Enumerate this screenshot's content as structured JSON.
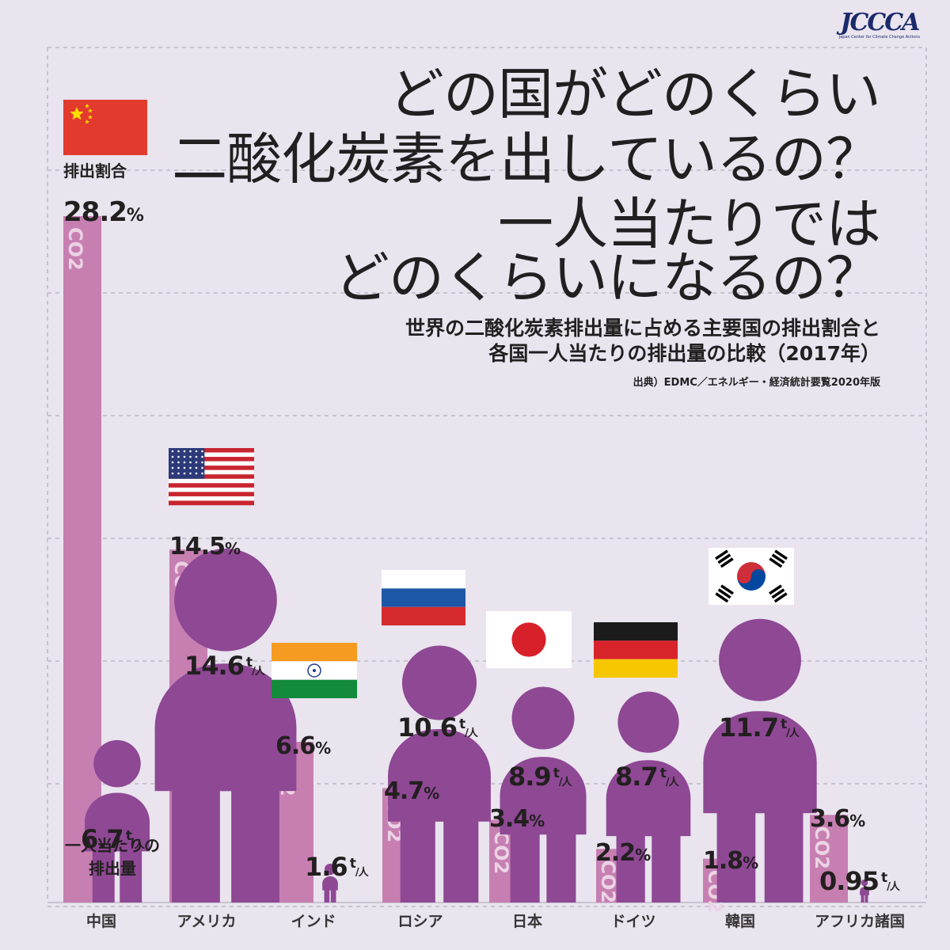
{
  "header": {
    "title_lines": [
      "どの国がどのくらい",
      "二酸化炭素を出しているの？",
      "一人当たりでは",
      "どのくらいになるの？"
    ],
    "subtitle_lines": [
      "世界の二酸化炭素排出量に占める主要国の排出割合と",
      "各国一人当たりの排出量の比較（2017年）"
    ],
    "source": "出典）EDMC／エネルギー・経済統計要覧2020年版",
    "logo": "JCCCA",
    "logo_sub": "Japan Center for Climate Change Actions"
  },
  "chart_data": {
    "type": "bar",
    "title": "世界の二酸化炭素排出量に占める主要国の排出割合と各国一人当たりの排出量の比較（2017年）",
    "categories": [
      "中国",
      "アメリカ",
      "インド",
      "ロシア",
      "日本",
      "ドイツ",
      "韓国",
      "アフリカ諸国"
    ],
    "series": [
      {
        "name": "排出割合",
        "unit": "%",
        "values": [
          28.2,
          14.5,
          6.6,
          4.7,
          3.4,
          2.2,
          1.8,
          3.6
        ],
        "labels": [
          "28.2",
          "14.5",
          "6.6",
          "4.7",
          "3.4",
          "2.2",
          "1.8",
          "3.6"
        ],
        "bar_text": "CO2",
        "color": "#c77fb2"
      },
      {
        "name": "一人当たりの排出量",
        "unit": "t/人",
        "values": [
          6.7,
          14.6,
          1.6,
          10.6,
          8.9,
          8.7,
          11.7,
          0.95
        ],
        "labels": [
          "6.7",
          "14.6",
          "1.6",
          "10.6",
          "8.9",
          "8.7",
          "11.7",
          "0.95"
        ],
        "color": "#8e4894"
      }
    ],
    "legend_labels": {
      "share": "排出割合",
      "per_capita_line1": "一人当たりの",
      "per_capita_line2": "排出量"
    },
    "unit_labels": {
      "percent": "%",
      "ton": "t",
      "person": "人"
    },
    "ylim": [
      0,
      30
    ],
    "grid": true
  },
  "flags": [
    "china-flag",
    "usa-flag",
    "india-flag",
    "russia-flag",
    "japan-flag",
    "germany-flag",
    "korea-flag"
  ],
  "colors": {
    "background": "#e9e4ee",
    "share_bar": "#c77fb2",
    "person": "#8e4894",
    "text": "#231f20",
    "grid": "#c9c2cf"
  }
}
